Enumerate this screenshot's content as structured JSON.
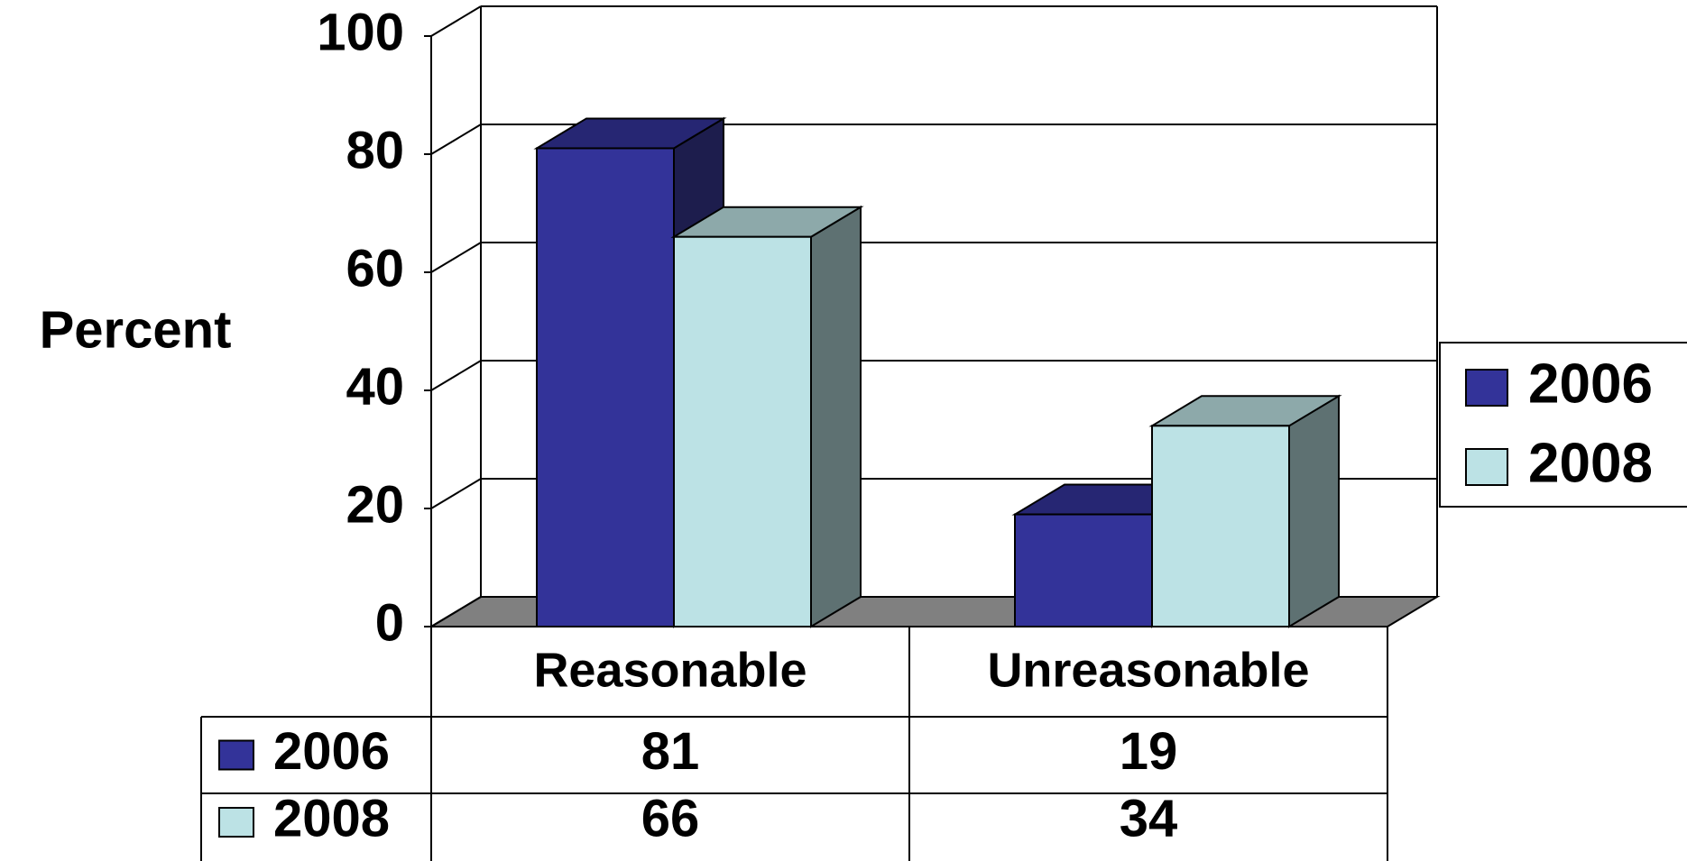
{
  "chart_data": {
    "type": "bar",
    "ylabel": "Percent",
    "ylim": [
      0,
      100
    ],
    "yticks": [
      0,
      20,
      40,
      60,
      80,
      100
    ],
    "grid": true,
    "legend_position": "right",
    "categories": [
      "Reasonable",
      "Unreasonable"
    ],
    "series": [
      {
        "name": "2006",
        "values": [
          81,
          19
        ],
        "color": "#333399"
      },
      {
        "name": "2008",
        "values": [
          66,
          34
        ],
        "color": "#bce2e5"
      }
    ],
    "data_table": true,
    "style": "3d-clustered-column"
  },
  "colors": {
    "floor": "#808080",
    "axis": "#000000",
    "series_2006_top": "#262673",
    "series_2006_side": "#1d1d4d",
    "series_2008_top": "#8da9aa",
    "series_2008_side": "#5e7172"
  }
}
